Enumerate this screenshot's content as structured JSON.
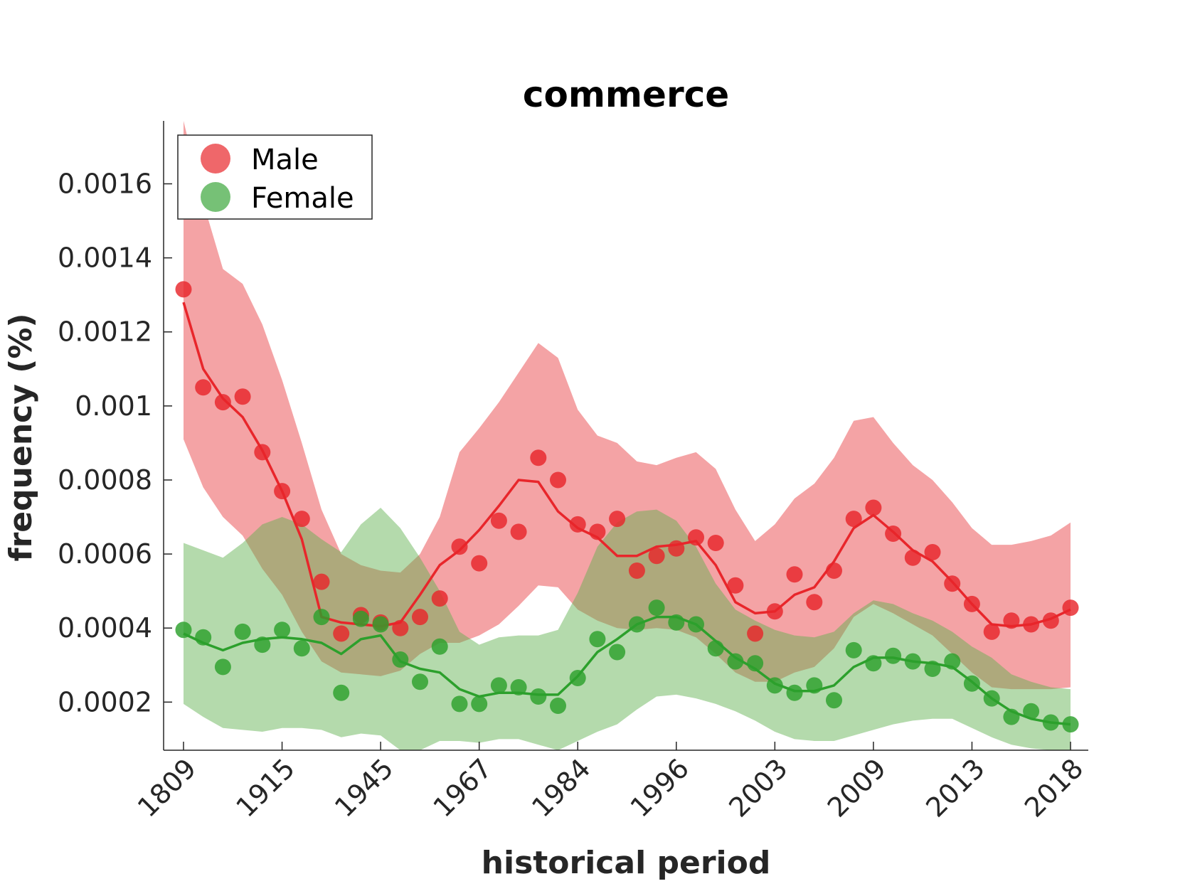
{
  "chart_data": {
    "type": "line",
    "title": "commerce",
    "xlabel": "historical period",
    "ylabel": "frequency (%)",
    "x_tick_labels": [
      "1809",
      "1915",
      "1945",
      "1967",
      "1984",
      "1996",
      "2003",
      "2009",
      "2013",
      "2018"
    ],
    "y_ticks": [
      0.0002,
      0.0004,
      0.0006,
      0.0008,
      0.001,
      0.0012,
      0.0014,
      0.0016
    ],
    "y_tick_labels": [
      "0.0002",
      "0.0004",
      "0.0006",
      "0.0008",
      "0.001",
      "0.0012",
      "0.0014",
      "0.0016"
    ],
    "ylim": [
      7e-05,
      0.00177
    ],
    "legend_position": "top-left",
    "grid": false,
    "series": [
      {
        "name": "Male",
        "color": "#e8262b",
        "band_color": "#f4a3a5",
        "points": [
          0.001315,
          0.00105,
          0.00101,
          0.001025,
          0.000875,
          0.00077,
          0.000695,
          0.000525,
          0.000385,
          0.000435,
          0.000415,
          0.0004,
          0.00043,
          0.00048,
          0.00062,
          0.000575,
          0.00069,
          0.00066,
          0.00086,
          0.0008,
          0.00068,
          0.00066,
          0.000695,
          0.000555,
          0.000595,
          0.000615,
          0.000645,
          0.00063,
          0.000515,
          0.000385,
          0.000445,
          0.000545,
          0.00047,
          0.000555,
          0.000695,
          0.000725,
          0.000655,
          0.00059,
          0.000605,
          0.00052,
          0.000465,
          0.00039,
          0.00042,
          0.00041,
          0.00042,
          0.000455
        ],
        "trend": [
          0.00128,
          0.0011,
          0.00102,
          0.00097,
          0.00088,
          0.00077,
          0.00064,
          0.00043,
          0.000415,
          0.00041,
          0.000405,
          0.000415,
          0.00049,
          0.00057,
          0.00061,
          0.000665,
          0.00073,
          0.0008,
          0.000795,
          0.000715,
          0.00067,
          0.000645,
          0.000595,
          0.000595,
          0.00062,
          0.000625,
          0.000635,
          0.00057,
          0.00047,
          0.00044,
          0.000445,
          0.00049,
          0.00051,
          0.00058,
          0.00067,
          0.000705,
          0.00066,
          0.00061,
          0.00058,
          0.000525,
          0.000465,
          0.00041,
          0.000405,
          0.00041,
          0.000425,
          0.00045
        ],
        "band_upper": [
          0.00177,
          0.00155,
          0.00137,
          0.00133,
          0.00122,
          0.00107,
          0.0009,
          0.00072,
          0.0006,
          0.00057,
          0.000555,
          0.00055,
          0.0006,
          0.0007,
          0.000875,
          0.00094,
          0.00101,
          0.00109,
          0.00117,
          0.00113,
          0.00099,
          0.00092,
          0.0009,
          0.00085,
          0.00084,
          0.00086,
          0.000875,
          0.00083,
          0.00072,
          0.000635,
          0.00068,
          0.00075,
          0.00079,
          0.00086,
          0.00096,
          0.00097,
          0.0009,
          0.00084,
          0.0008,
          0.00074,
          0.00067,
          0.000625,
          0.000625,
          0.000635,
          0.00065,
          0.000685
        ],
        "band_lower": [
          0.00091,
          0.00078,
          0.0007,
          0.00065,
          0.00056,
          0.00049,
          0.00039,
          0.00031,
          0.00028,
          0.000275,
          0.00027,
          0.000285,
          0.00033,
          0.00036,
          0.00036,
          0.00038,
          0.00041,
          0.00046,
          0.000515,
          0.00051,
          0.00045,
          0.00042,
          0.0004,
          0.000395,
          0.0004,
          0.000395,
          0.000375,
          0.00033,
          0.00028,
          0.000255,
          0.000255,
          0.00028,
          0.000295,
          0.000345,
          0.00043,
          0.000465,
          0.00044,
          0.00041,
          0.00038,
          0.00033,
          0.00028,
          0.00024,
          0.000235,
          0.000235,
          0.000235,
          0.00024
        ]
      },
      {
        "name": "Female",
        "color": "#2ca02c",
        "band_color": "#b1dcaa",
        "points": [
          0.000395,
          0.000375,
          0.000295,
          0.00039,
          0.000355,
          0.000395,
          0.000345,
          0.00043,
          0.000225,
          0.000425,
          0.00041,
          0.000315,
          0.000255,
          0.00035,
          0.000195,
          0.000195,
          0.000245,
          0.00024,
          0.000215,
          0.00019,
          0.000265,
          0.00037,
          0.000335,
          0.00041,
          0.000455,
          0.000415,
          0.00041,
          0.000345,
          0.00031,
          0.000305,
          0.000245,
          0.000225,
          0.000245,
          0.000205,
          0.00034,
          0.000305,
          0.000325,
          0.00031,
          0.00029,
          0.00031,
          0.00025,
          0.00021,
          0.00016,
          0.000175,
          0.000145,
          0.00014
        ],
        "trend": [
          0.000385,
          0.00036,
          0.00034,
          0.00036,
          0.00037,
          0.000375,
          0.00037,
          0.00036,
          0.00033,
          0.00037,
          0.00038,
          0.00031,
          0.00029,
          0.00028,
          0.000235,
          0.000215,
          0.000225,
          0.000225,
          0.00022,
          0.00022,
          0.00027,
          0.000335,
          0.00037,
          0.00041,
          0.00043,
          0.00043,
          0.00041,
          0.000365,
          0.00032,
          0.00029,
          0.00025,
          0.00023,
          0.00023,
          0.000245,
          0.000295,
          0.00032,
          0.00032,
          0.00031,
          0.000305,
          0.000295,
          0.000255,
          0.00021,
          0.000175,
          0.000155,
          0.000145,
          0.00014
        ],
        "band_upper": [
          0.00063,
          0.00061,
          0.00059,
          0.00063,
          0.00068,
          0.0007,
          0.00068,
          0.00064,
          0.000605,
          0.00068,
          0.000725,
          0.00067,
          0.00059,
          0.0005,
          0.00039,
          0.000355,
          0.000375,
          0.00038,
          0.00038,
          0.000395,
          0.000495,
          0.00062,
          0.000685,
          0.000715,
          0.00072,
          0.00069,
          0.00062,
          0.00052,
          0.00045,
          0.00042,
          0.000395,
          0.00038,
          0.000375,
          0.00039,
          0.00044,
          0.000475,
          0.000465,
          0.00044,
          0.00042,
          0.00039,
          0.00035,
          0.00032,
          0.000275,
          0.000255,
          0.00024,
          0.000235
        ],
        "band_lower": [
          0.000195,
          0.00016,
          0.00013,
          0.000125,
          0.00012,
          0.00013,
          0.00013,
          0.000125,
          0.000105,
          0.000115,
          0.00011,
          7e-05,
          7e-05,
          9.5e-05,
          9.5e-05,
          9e-05,
          0.0001,
          0.0001,
          8.5e-05,
          7e-05,
          9.5e-05,
          0.00012,
          0.00014,
          0.00018,
          0.000215,
          0.00022,
          0.00021,
          0.000195,
          0.000175,
          0.00015,
          0.00012,
          0.0001,
          9.5e-05,
          9.5e-05,
          0.00011,
          0.000125,
          0.00014,
          0.00015,
          0.000155,
          0.000155,
          0.00013,
          0.000105,
          8.5e-05,
          7.5e-05,
          7e-05,
          6.5e-05
        ]
      }
    ]
  }
}
